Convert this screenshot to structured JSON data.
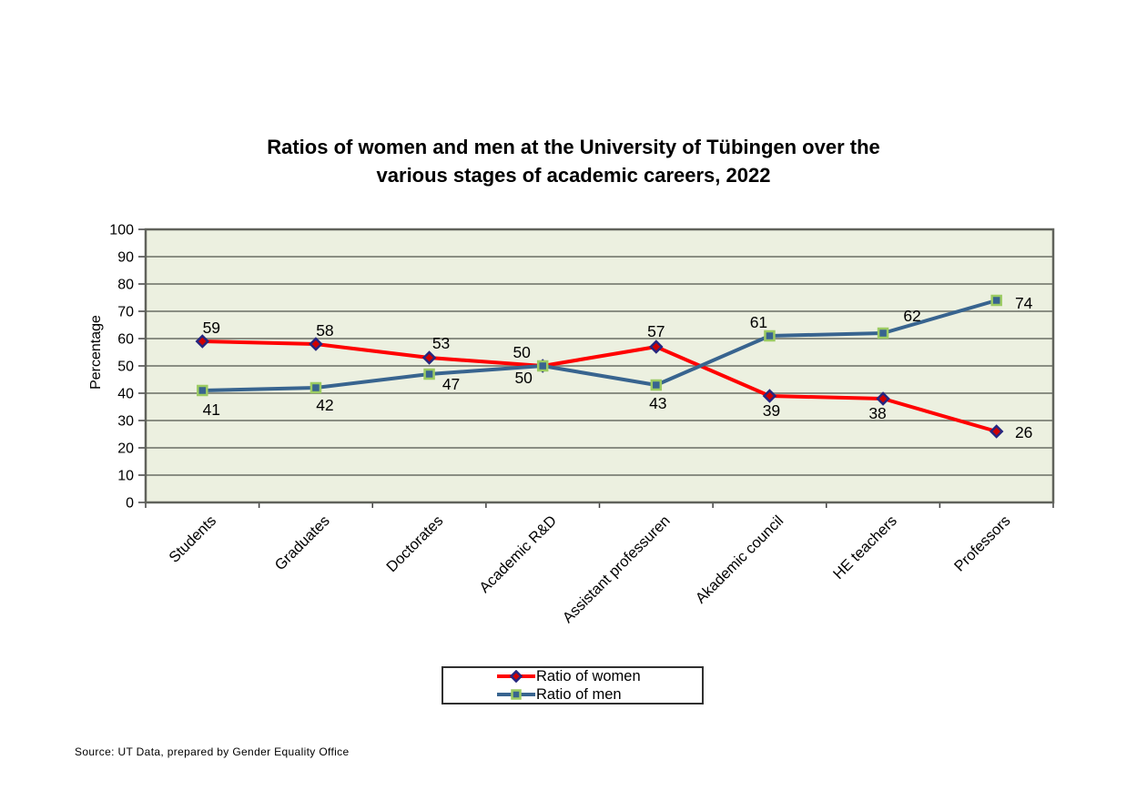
{
  "title_lines": [
    "Ratios of women and men at the University of Tübingen over the",
    "various stages of academic careers, 2022"
  ],
  "footer": {
    "source_note": "Source: UT Data, prepared by Gender Equality Office"
  },
  "chart_data": {
    "type": "line",
    "title": "Ratios of women and men at the University of Tübingen over the various stages of academic careers, 2022",
    "xlabel": "",
    "ylabel": "Percentage",
    "ylim": [
      0,
      100
    ],
    "ytick_step": 10,
    "grid": "horizontal",
    "legend_position": "bottom-center",
    "plot_bg_color": "#ECF0E0",
    "gridline_color": "#8A8E83",
    "border_color": "#60625B",
    "tick_color": "#3F3F3F",
    "categories": [
      "Students",
      "Graduates",
      "Doctorates",
      "Academic R&D",
      "Assistant professuren",
      "Akademic council",
      "HE teachers",
      "Professors"
    ],
    "series": [
      {
        "name": "Ratio of women",
        "line_color": "#FF0000",
        "marker": "diamond",
        "marker_fill": "#D00000",
        "marker_stroke": "#26267F",
        "values": [
          59,
          58,
          53,
          50,
          57,
          39,
          38,
          26
        ]
      },
      {
        "name": "Ratio of men",
        "line_color": "#38648F",
        "marker": "square",
        "marker_fill": "#38648F",
        "marker_stroke": "#9CCB63",
        "values": [
          41,
          42,
          47,
          50,
          43,
          61,
          62,
          74
        ]
      }
    ]
  }
}
